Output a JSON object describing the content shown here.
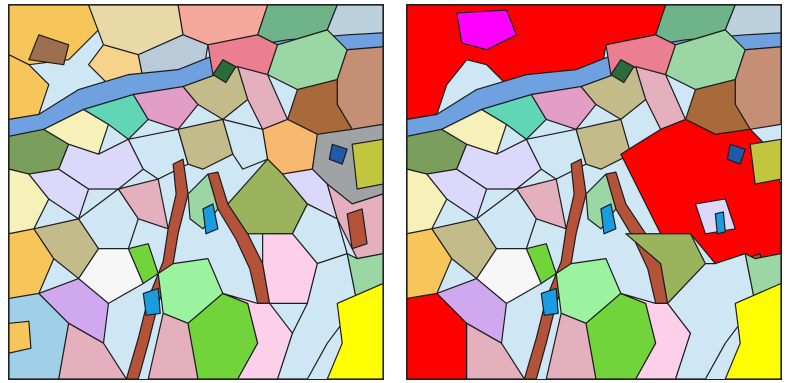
{
  "figure": {
    "panels": [
      {
        "id": "original-map",
        "label": ""
      },
      {
        "id": "segmented-map",
        "label": ""
      }
    ],
    "highlight_colors": {
      "red_region": "#ff0000",
      "magenta_region": "#ff00ff"
    },
    "legend_visible": false
  }
}
